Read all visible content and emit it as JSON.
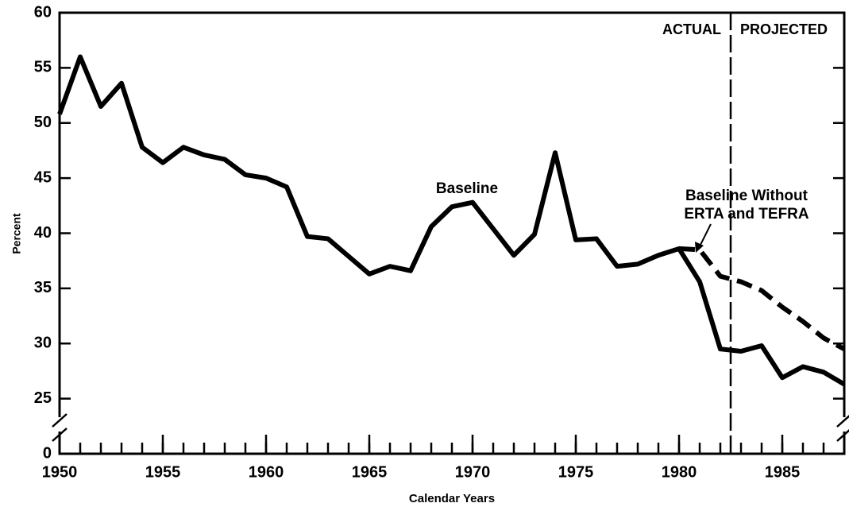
{
  "chart_data": {
    "type": "line",
    "x_label": "Calendar Years",
    "y_label": "Percent",
    "x": [
      1950,
      1951,
      1952,
      1953,
      1954,
      1955,
      1956,
      1957,
      1958,
      1959,
      1960,
      1961,
      1962,
      1963,
      1964,
      1965,
      1966,
      1967,
      1968,
      1969,
      1970,
      1971,
      1972,
      1973,
      1974,
      1975,
      1976,
      1977,
      1978,
      1979,
      1980,
      1981,
      1982,
      1983,
      1984,
      1985,
      1986,
      1987,
      1988
    ],
    "series": [
      {
        "name": "Baseline",
        "color": "#000000",
        "dash": false,
        "values": [
          50.8,
          56,
          51.5,
          53.6,
          47.8,
          46.4,
          47.8,
          47.1,
          46.7,
          45.3,
          45.0,
          44.2,
          39.7,
          39.5,
          37.9,
          36.3,
          37.0,
          36.6,
          40.6,
          42.4,
          42.8,
          40.4,
          38.0,
          39.9,
          47.3,
          39.4,
          39.5,
          37.0,
          37.2,
          38.0,
          38.6,
          35.6,
          29.5,
          29.3,
          29.8,
          26.9,
          27.9,
          27.4,
          26.3
        ]
      },
      {
        "name": "Baseline Without ERTA and TEFRA",
        "color": "#000000",
        "dash": true,
        "values": [
          null,
          null,
          null,
          null,
          null,
          null,
          null,
          null,
          null,
          null,
          null,
          null,
          null,
          null,
          null,
          null,
          null,
          null,
          null,
          null,
          null,
          null,
          null,
          null,
          null,
          null,
          null,
          null,
          null,
          null,
          38.6,
          38.5,
          36.1,
          35.6,
          34.8,
          33.3,
          32.0,
          30.5,
          29.5
        ]
      }
    ],
    "annotations": [
      {
        "text": "Baseline"
      },
      {
        "text": "Baseline Without",
        "text2": "ERTA and TEFRA"
      }
    ],
    "divider": {
      "x": 1982.5,
      "left_label": "ACTUAL",
      "right_label": "PROJECTED"
    },
    "xlim": [
      1950,
      1988
    ],
    "xticks": [
      1950,
      1955,
      1960,
      1965,
      1970,
      1975,
      1980,
      1985
    ],
    "minor_xticks": [
      1950,
      1951,
      1952,
      1953,
      1954,
      1955,
      1956,
      1957,
      1958,
      1959,
      1960,
      1961,
      1962,
      1963,
      1964,
      1965,
      1966,
      1967,
      1968,
      1969,
      1970,
      1971,
      1972,
      1973,
      1974,
      1975,
      1976,
      1977,
      1978,
      1979,
      1980,
      1981,
      1982,
      1983,
      1984,
      1985,
      1986,
      1987,
      1988
    ],
    "ylim": [
      0,
      60
    ],
    "axis_break": [
      0,
      20
    ],
    "yticks": [
      0,
      25,
      30,
      35,
      40,
      45,
      50,
      55,
      60
    ]
  }
}
